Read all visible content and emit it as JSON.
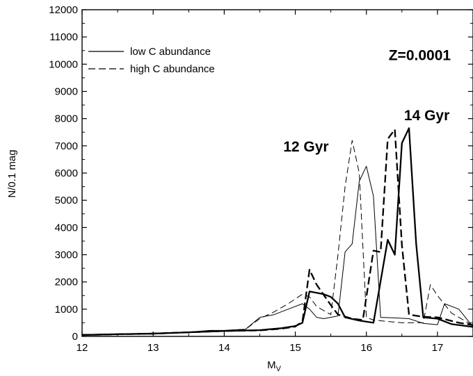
{
  "chart_data": {
    "type": "line",
    "xlabel_main": "M",
    "xlabel_sub": "V",
    "ylabel": "N/0.1 mag",
    "xlim": [
      12,
      17.5
    ],
    "ylim": [
      0,
      12000
    ],
    "xticks": [
      12,
      13,
      14,
      15,
      16,
      17
    ],
    "yticks": [
      0,
      1000,
      2000,
      3000,
      4000,
      5000,
      6000,
      7000,
      8000,
      9000,
      10000,
      11000,
      12000
    ],
    "grid": false,
    "legend_position": "top-left",
    "legend": [
      {
        "label": "low C abundance",
        "style": "solid"
      },
      {
        "label": "high C abundance",
        "style": "dashed"
      }
    ],
    "annotations": [
      {
        "text": "Z=0.0001",
        "x": 16.75,
        "y": 10350
      },
      {
        "text": "14 Gyr",
        "x": 16.85,
        "y": 8150
      },
      {
        "text": "12 Gyr",
        "x": 15.15,
        "y": 7000
      }
    ],
    "series": [
      {
        "age": "12 Gyr",
        "abundance": "low",
        "style": "solid",
        "weight": "thin",
        "x": [
          12.0,
          12.5,
          13.0,
          13.5,
          13.8,
          14.0,
          14.3,
          14.5,
          14.7,
          14.9,
          15.1,
          15.2,
          15.3,
          15.4,
          15.6,
          15.7,
          15.8,
          15.9,
          16.0,
          16.1,
          16.2,
          16.4,
          16.6,
          16.8,
          17.0,
          17.1,
          17.3,
          17.5
        ],
        "y": [
          70,
          90,
          120,
          160,
          220,
          220,
          260,
          700,
          800,
          1000,
          1200,
          1000,
          700,
          650,
          750,
          3100,
          3400,
          5700,
          6250,
          5150,
          700,
          680,
          650,
          480,
          430,
          1200,
          1000,
          350
        ]
      },
      {
        "age": "12 Gyr",
        "abundance": "high",
        "style": "dashed",
        "weight": "thin",
        "x": [
          12.0,
          12.5,
          13.0,
          13.5,
          13.8,
          14.0,
          14.3,
          14.5,
          14.7,
          14.9,
          15.1,
          15.2,
          15.3,
          15.5,
          15.6,
          15.7,
          15.8,
          15.9,
          16.0,
          16.1,
          16.3,
          16.5,
          16.8,
          16.9,
          17.0,
          17.2,
          17.5
        ],
        "y": [
          70,
          90,
          120,
          160,
          210,
          220,
          260,
          650,
          900,
          1200,
          1550,
          1450,
          1100,
          800,
          3000,
          5500,
          7200,
          6000,
          700,
          600,
          550,
          500,
          500,
          1900,
          1500,
          850,
          400
        ]
      },
      {
        "age": "14 Gyr",
        "abundance": "low",
        "style": "solid",
        "weight": "thick",
        "x": [
          12.0,
          12.5,
          13.0,
          13.5,
          14.0,
          14.5,
          14.8,
          15.0,
          15.1,
          15.2,
          15.4,
          15.5,
          15.6,
          15.7,
          15.9,
          16.1,
          16.3,
          16.4,
          16.5,
          16.6,
          16.7,
          16.8,
          17.0,
          17.2,
          17.5
        ],
        "y": [
          50,
          80,
          100,
          150,
          200,
          230,
          300,
          380,
          500,
          1650,
          1550,
          1450,
          1200,
          700,
          580,
          500,
          3550,
          3000,
          7100,
          7650,
          3400,
          700,
          650,
          450,
          350
        ]
      },
      {
        "age": "14 Gyr",
        "abundance": "high",
        "style": "dashed",
        "weight": "thick",
        "x": [
          12.0,
          12.5,
          13.0,
          13.5,
          14.0,
          14.5,
          14.8,
          15.0,
          15.1,
          15.2,
          15.3,
          15.5,
          15.6,
          15.8,
          15.95,
          16.1,
          16.2,
          16.3,
          16.4,
          16.5,
          16.6,
          16.8,
          17.0,
          17.3,
          17.5
        ],
        "y": [
          50,
          80,
          100,
          150,
          200,
          220,
          280,
          360,
          550,
          2450,
          1900,
          1150,
          800,
          650,
          600,
          3150,
          3100,
          7250,
          7600,
          3350,
          800,
          720,
          700,
          500,
          420
        ]
      }
    ]
  }
}
